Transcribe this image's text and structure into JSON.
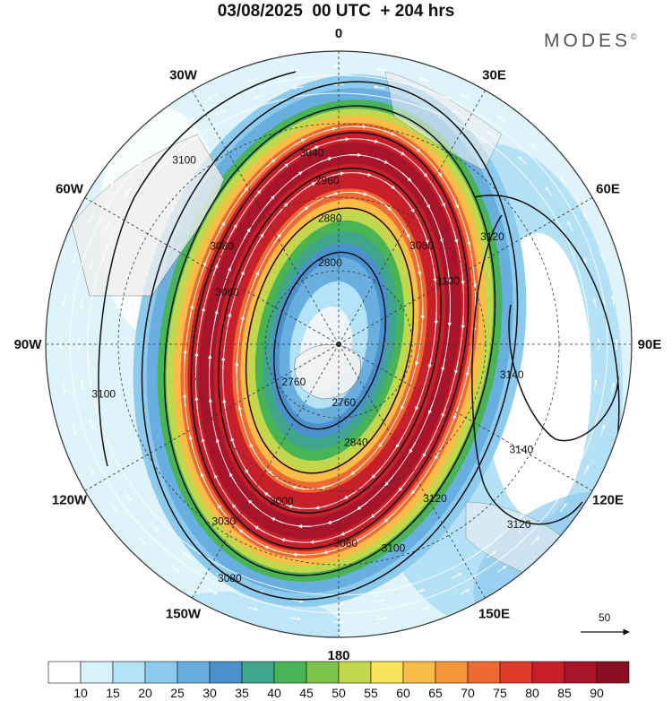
{
  "title": "03/08/2025  00 UTC  + 204 hrs",
  "brand": "MODES",
  "brand_mark": "©",
  "meridian_labels": [
    {
      "text": "0",
      "deg": 0
    },
    {
      "text": "30E",
      "deg": 30
    },
    {
      "text": "60E",
      "deg": 60
    },
    {
      "text": "90E",
      "deg": 90
    },
    {
      "text": "120E",
      "deg": 120
    },
    {
      "text": "150E",
      "deg": 150
    },
    {
      "text": "180",
      "deg": 180
    },
    {
      "text": "150W",
      "deg": 210
    },
    {
      "text": "120W",
      "deg": 240
    },
    {
      "text": "90W",
      "deg": 270
    },
    {
      "text": "60W",
      "deg": 300
    },
    {
      "text": "30W",
      "deg": 330
    }
  ],
  "reference_vector": {
    "value": "50"
  },
  "colorbar": {
    "labels": [
      "10",
      "15",
      "20",
      "25",
      "30",
      "35",
      "40",
      "45",
      "50",
      "55",
      "60",
      "65",
      "70",
      "75",
      "80",
      "85",
      "90"
    ],
    "colors": [
      "#ffffff",
      "#d8f2fc",
      "#b4e2f7",
      "#8ccbee",
      "#68afe0",
      "#4a91ce",
      "#3fa68c",
      "#48b456",
      "#7ec34a",
      "#c1d74c",
      "#f8e45b",
      "#f9bd47",
      "#f59538",
      "#ee6a32",
      "#e13a2b",
      "#c8202a",
      "#a8142a",
      "#8b0f22"
    ]
  },
  "contours": [
    {
      "text": "3100",
      "ang": -40,
      "r": 0.82
    },
    {
      "text": "3080",
      "ang": -50,
      "r": 0.52
    },
    {
      "text": "3060",
      "ang": -65,
      "r": 0.42
    },
    {
      "text": "3040",
      "ang": -8,
      "r": 0.66
    },
    {
      "text": "2960",
      "ang": -4,
      "r": 0.56
    },
    {
      "text": "2880",
      "ang": -4,
      "r": 0.43
    },
    {
      "text": "2800",
      "ang": -6,
      "r": 0.28
    },
    {
      "text": "2760",
      "ang": 230,
      "r": 0.2
    },
    {
      "text": "2760",
      "ang": 175,
      "r": 0.2
    },
    {
      "text": "2840",
      "ang": 170,
      "r": 0.34
    },
    {
      "text": "3000",
      "ang": 200,
      "r": 0.57
    },
    {
      "text": "3060",
      "ang": 178,
      "r": 0.68
    },
    {
      "text": "3080",
      "ang": 205,
      "r": 0.88
    },
    {
      "text": "3030",
      "ang": 213,
      "r": 0.72
    },
    {
      "text": "3100",
      "ang": 258,
      "r": 0.82
    },
    {
      "text": "3120",
      "ang": 55,
      "r": 0.64
    },
    {
      "text": "3080",
      "ang": 40,
      "r": 0.44
    },
    {
      "text": "3100",
      "ang": 60,
      "r": 0.43
    },
    {
      "text": "3140",
      "ang": 100,
      "r": 0.6
    },
    {
      "text": "3140",
      "ang": 120,
      "r": 0.72
    },
    {
      "text": "3120",
      "ang": 135,
      "r": 0.87
    },
    {
      "text": "3120",
      "ang": 148,
      "r": 0.62
    },
    {
      "text": "3100",
      "ang": 165,
      "r": 0.72
    }
  ]
}
